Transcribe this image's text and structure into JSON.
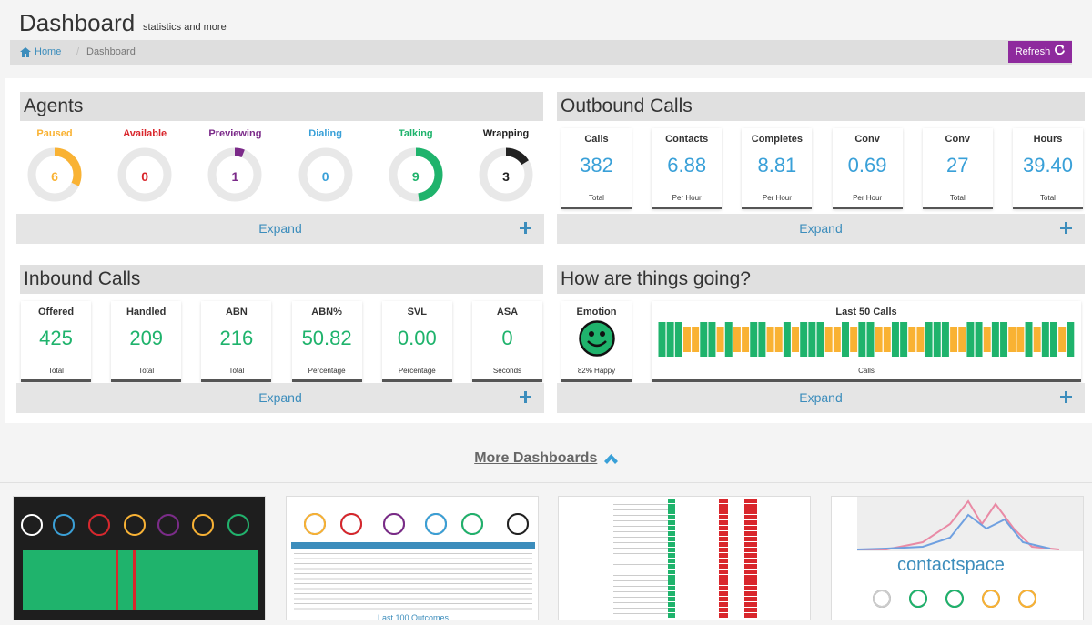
{
  "header": {
    "title": "Dashboard",
    "subtitle": "statistics and more"
  },
  "breadcrumb": {
    "home": "Home",
    "separator": "/",
    "current": "Dashboard"
  },
  "refresh_label": "Refresh",
  "expand_label": "Expand",
  "agents": {
    "title": "Agents",
    "items": [
      {
        "label": "Paused",
        "value": "6",
        "fraction": 0.32,
        "color": "#f9b233"
      },
      {
        "label": "Available",
        "value": "0",
        "fraction": 0,
        "color": "#d9262c"
      },
      {
        "label": "Previewing",
        "value": "1",
        "fraction": 0.06,
        "color": "#7b2a89"
      },
      {
        "label": "Dialing",
        "value": "0",
        "fraction": 0,
        "color": "#39a0d8"
      },
      {
        "label": "Talking",
        "value": "9",
        "fraction": 0.48,
        "color": "#1fb36c"
      },
      {
        "label": "Wrapping",
        "value": "3",
        "fraction": 0.16,
        "color": "#222222"
      }
    ]
  },
  "outbound": {
    "title": "Outbound Calls",
    "stats": [
      {
        "label": "Calls",
        "value": "382",
        "unit": "Total"
      },
      {
        "label": "Contacts",
        "value": "6.88",
        "unit": "Per Hour"
      },
      {
        "label": "Completes",
        "value": "8.81",
        "unit": "Per Hour"
      },
      {
        "label": "Conv",
        "value": "0.69",
        "unit": "Per Hour"
      },
      {
        "label": "Conv",
        "value": "27",
        "unit": "Total"
      },
      {
        "label": "Hours",
        "value": "39.40",
        "unit": "Total"
      }
    ]
  },
  "inbound": {
    "title": "Inbound Calls",
    "stats": [
      {
        "label": "Offered",
        "value": "425",
        "unit": "Total"
      },
      {
        "label": "Handled",
        "value": "209",
        "unit": "Total"
      },
      {
        "label": "ABN",
        "value": "216",
        "unit": "Total"
      },
      {
        "label": "ABN%",
        "value": "50.82",
        "unit": "Percentage"
      },
      {
        "label": "SVL",
        "value": "0.00",
        "unit": "Percentage"
      },
      {
        "label": "ASA",
        "value": "0",
        "unit": "Seconds"
      }
    ]
  },
  "howgoing": {
    "title": "How are things going?",
    "emotion_label": "Emotion",
    "emotion_text": "82% Happy",
    "calls_label": "Last 50 Calls",
    "calls_unit": "Calls",
    "calls_sequence": [
      1,
      1,
      1,
      0,
      0,
      1,
      1,
      0,
      1,
      0,
      0,
      1,
      1,
      0,
      0,
      1,
      0,
      1,
      1,
      1,
      0,
      0,
      1,
      0,
      1,
      1,
      0,
      0,
      1,
      1,
      0,
      0,
      1,
      1,
      1,
      0,
      0,
      1,
      1,
      0,
      1,
      1,
      0,
      0,
      1,
      0,
      1,
      1,
      0,
      1
    ],
    "colors": {
      "good": "#1fb36c",
      "bad": "#f9b233"
    }
  },
  "more_dashboards": "More Dashboards",
  "thumb_logo_text": "contactspace",
  "thumb_caption": "Last 100 Outcomes",
  "colors": {
    "accent": "#3c8dbc",
    "stat_value": "#39a0d8",
    "stat_value_inbound": "#1fb36c",
    "refresh": "#8e2a9d"
  }
}
